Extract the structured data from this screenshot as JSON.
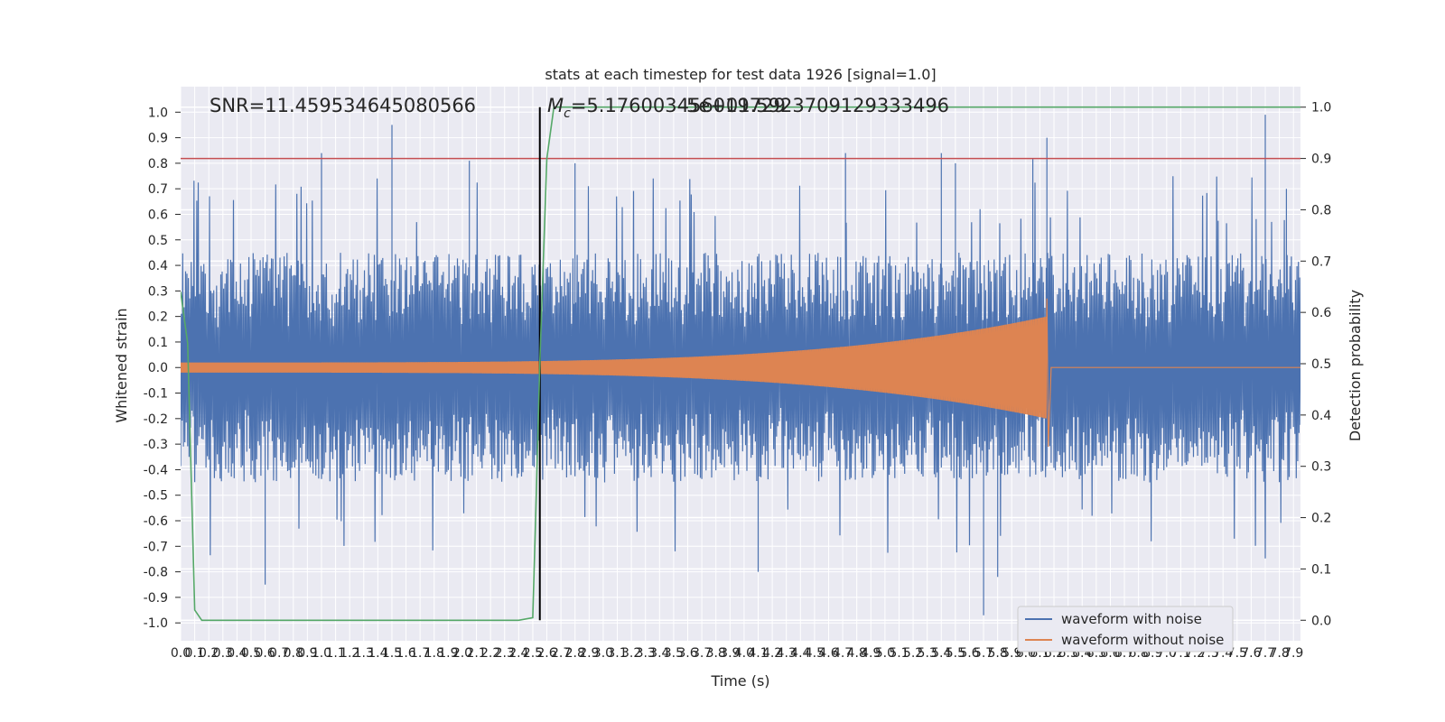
{
  "chart_data": {
    "type": "line",
    "title": "stats at each timestep for test data 1926 [signal=1.0]",
    "xlabel": "Time (s)",
    "ylabel": "Whitened strain",
    "y2label": "Detection probability",
    "xlim": [
      0.0,
      7.95
    ],
    "ylim": [
      -1.07,
      1.1
    ],
    "y2lim": [
      -0.04,
      1.04
    ],
    "xticks": [
      0.0,
      0.1,
      0.2,
      0.3,
      0.4,
      0.5,
      0.6,
      0.7,
      0.8,
      0.9,
      1.0,
      1.1,
      1.2,
      1.3,
      1.4,
      1.5,
      1.6,
      1.7,
      1.8,
      1.9,
      2.0,
      2.1,
      2.2,
      2.3,
      2.4,
      2.5,
      2.6,
      2.7,
      2.8,
      2.9,
      3.0,
      3.1,
      3.2,
      3.3,
      3.4,
      3.5,
      3.6,
      3.7,
      3.8,
      3.9,
      4.0,
      4.1,
      4.2,
      4.3,
      4.4,
      4.5,
      4.6,
      4.7,
      4.8,
      4.9,
      5.0,
      5.1,
      5.2,
      5.3,
      5.4,
      5.5,
      5.6,
      5.7,
      5.8,
      5.9,
      6.0,
      6.1,
      6.2,
      6.3,
      6.4,
      6.5,
      6.6,
      6.7,
      6.8,
      6.9,
      7.0,
      7.1,
      7.2,
      7.3,
      7.4,
      7.5,
      7.6,
      7.7,
      7.8,
      7.9
    ],
    "yticks": [
      -1.0,
      -0.9,
      -0.8,
      -0.7,
      -0.6,
      -0.5,
      -0.4,
      -0.3,
      -0.2,
      -0.1,
      0.0,
      0.1,
      0.2,
      0.3,
      0.4,
      0.5,
      0.6,
      0.7,
      0.8,
      0.9,
      1.0
    ],
    "y2ticks": [
      0.0,
      0.1,
      0.2,
      0.3,
      0.4,
      0.5,
      0.6,
      0.7,
      0.8,
      0.9,
      1.0
    ],
    "grid": true,
    "legend_position": "bottom-right",
    "annotations": {
      "snr": "SNR=11.459534645080566",
      "mc_prefix": "M",
      "mc_sub": "c",
      "mc_value": "=5.176003456019729",
      "overlap": "5e+01.5923709129333496"
    },
    "threshold": {
      "axis": "y2",
      "value": 0.9,
      "color": "#c44e52"
    },
    "vline": {
      "x": 2.55,
      "color": "#000000"
    },
    "series": [
      {
        "name": "waveform with noise",
        "axis": "y",
        "color": "#4c72b0",
        "envelope": {
          "typical_amplitude": 0.45,
          "step": 0.005
        },
        "peaks": [
          {
            "x": 1.0,
            "y": 0.84
          },
          {
            "x": 1.5,
            "y": 0.95
          },
          {
            "x": 2.05,
            "y": 0.81
          },
          {
            "x": 2.8,
            "y": 0.8
          },
          {
            "x": 4.72,
            "y": 0.84
          },
          {
            "x": 5.4,
            "y": 0.84
          },
          {
            "x": 5.5,
            "y": 0.8
          },
          {
            "x": 6.05,
            "y": 0.82
          },
          {
            "x": 6.15,
            "y": 0.9
          },
          {
            "x": 7.7,
            "y": 0.99
          },
          {
            "x": 7.85,
            "y": 0.7
          },
          {
            "x": 0.6,
            "y": -0.85
          },
          {
            "x": 4.1,
            "y": -0.8
          },
          {
            "x": 5.7,
            "y": -0.97
          },
          {
            "x": 5.8,
            "y": -0.82
          }
        ]
      },
      {
        "name": "waveform without noise",
        "axis": "y",
        "color": "#dd8452",
        "chirp": {
          "start": 0.0,
          "merger": 6.15,
          "amp_start": 0.02,
          "amp_peak": 0.27,
          "amp_trough": -0.31
        }
      },
      {
        "name": "",
        "axis": "y2",
        "color": "#55a868",
        "x": [
          0.0,
          0.05,
          0.1,
          0.15,
          0.2,
          2.0,
          2.4,
          2.5,
          2.52,
          2.55,
          2.6,
          2.65,
          7.95
        ],
        "values": [
          0.64,
          0.54,
          0.02,
          0.0,
          0.0,
          0.0,
          0.0,
          0.005,
          0.2,
          0.5,
          0.9,
          1.0,
          1.0
        ]
      }
    ]
  }
}
